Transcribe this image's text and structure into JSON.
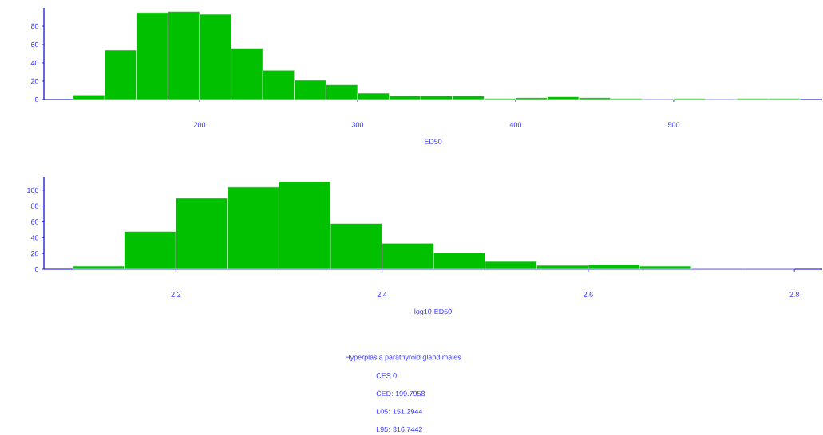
{
  "chart_data": [
    {
      "type": "histogram",
      "xlabel": "ED50",
      "color": "#00c000",
      "bins": [
        120,
        140,
        160,
        180,
        200,
        220,
        240,
        260,
        280,
        300,
        320,
        340,
        360,
        380,
        400,
        420,
        440,
        460,
        480,
        500,
        520,
        540,
        560,
        580
      ],
      "values": [
        5,
        54,
        95,
        96,
        93,
        56,
        32,
        21,
        16,
        7,
        4,
        4,
        4,
        1,
        2,
        3,
        2,
        1,
        0,
        1,
        0,
        1,
        1
      ],
      "xlim": [
        101.5,
        594
      ],
      "ylim": [
        0,
        100
      ],
      "xticks": [
        200,
        300,
        400,
        500
      ],
      "yticks": [
        0,
        20,
        40,
        60,
        80
      ]
    },
    {
      "type": "histogram",
      "xlabel": "log10-ED50",
      "color": "#00c000",
      "bins": [
        2.1,
        2.15,
        2.2,
        2.25,
        2.3,
        2.35,
        2.4,
        2.45,
        2.5,
        2.55,
        2.6,
        2.65,
        2.7,
        2.75,
        2.8
      ],
      "values": [
        4,
        48,
        90,
        104,
        111,
        58,
        33,
        21,
        10,
        5,
        6,
        4,
        1,
        1
      ],
      "xlim": [
        2.072,
        2.827
      ],
      "ylim": [
        0,
        117
      ],
      "xticks": [
        2.2,
        2.4,
        2.6,
        2.8
      ],
      "yticks": [
        0,
        20,
        40,
        60,
        80,
        100
      ],
      "annotations": [
        "Hyperplasia parathyroid gland males",
        "CES 0",
        "CED: 199.7958",
        "L05: 151.2944",
        "L95: 316.7442"
      ]
    }
  ]
}
